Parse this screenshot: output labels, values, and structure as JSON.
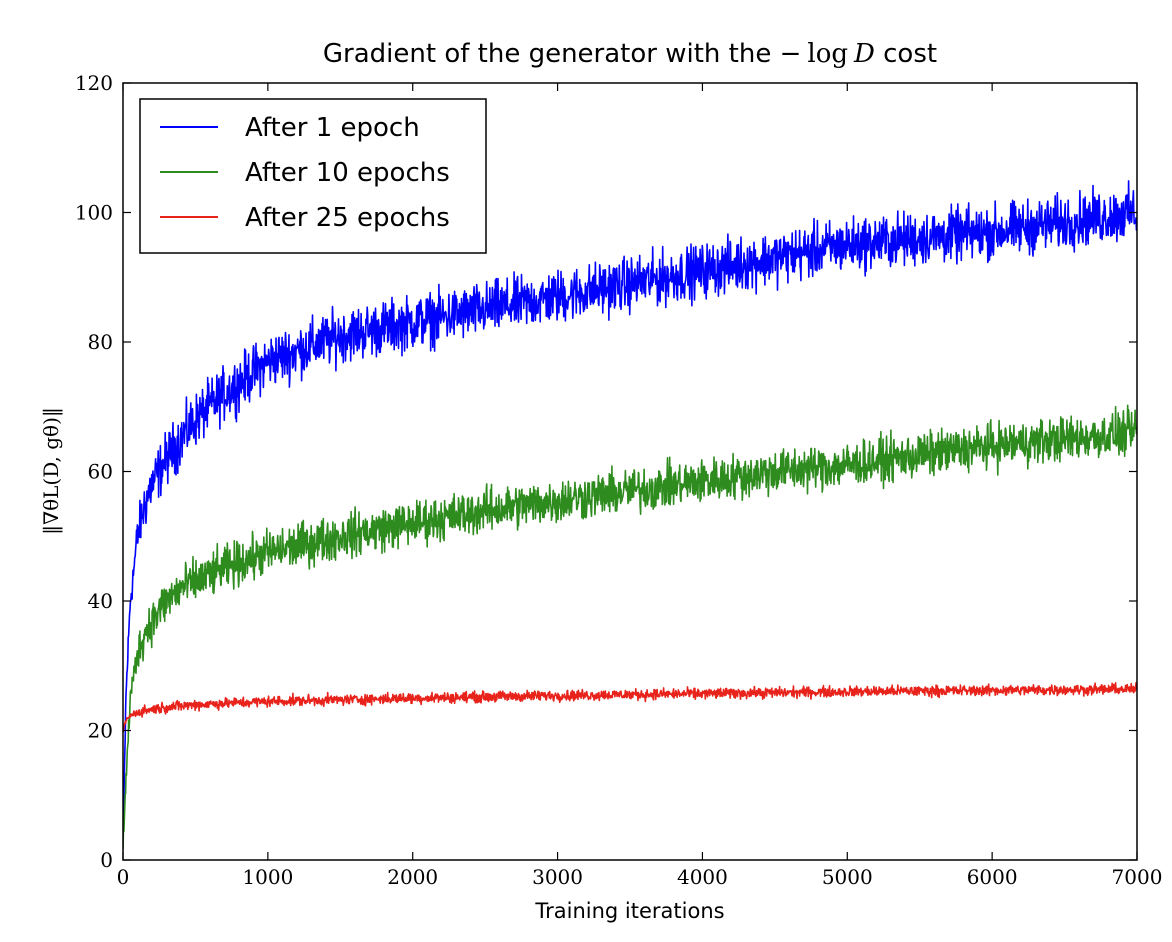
{
  "chart_data": {
    "type": "line",
    "title": {
      "prefix": "Gradient of the generator with the ",
      "math_minus": "−",
      "math_log": "log",
      "math_var": "D",
      "suffix": " cost"
    },
    "xlabel": "Training iterations",
    "ylabel": "‖∇θL(D, gθ)‖",
    "xlim": [
      0,
      7000
    ],
    "ylim": [
      0,
      120
    ],
    "xticks": [
      0,
      1000,
      2000,
      3000,
      4000,
      5000,
      6000,
      7000
    ],
    "yticks": [
      0,
      20,
      40,
      60,
      80,
      100,
      120
    ],
    "grid": false,
    "legend_position": "top-left",
    "series": [
      {
        "name": "After 1 epoch",
        "color": "#0000ff",
        "noise": 6,
        "x": [
          0,
          20,
          50,
          100,
          150,
          200,
          300,
          400,
          500,
          700,
          1000,
          1500,
          2000,
          2500,
          3000,
          3500,
          4000,
          4500,
          5000,
          5500,
          6000,
          6500,
          7000
        ],
        "y": [
          2,
          25,
          40,
          50,
          55,
          58,
          62,
          65,
          68,
          72,
          77,
          81,
          83,
          85,
          87,
          89,
          91,
          93,
          95,
          96,
          97,
          98.5,
          100
        ]
      },
      {
        "name": "After 10 epochs",
        "color": "#2e8b1e",
        "noise": 5,
        "x": [
          0,
          20,
          50,
          100,
          150,
          200,
          300,
          400,
          500,
          700,
          1000,
          1500,
          2000,
          2500,
          3000,
          3500,
          4000,
          4500,
          5000,
          5500,
          6000,
          6500,
          7000
        ],
        "y": [
          2,
          12,
          25,
          32,
          35,
          37,
          40,
          42,
          43,
          45,
          47.5,
          50,
          52,
          54,
          55.5,
          57,
          58.5,
          60,
          61,
          62.5,
          64,
          65,
          66
        ]
      },
      {
        "name": "After 25 epochs",
        "color": "#e8231b",
        "noise": 1.2,
        "x": [
          0,
          20,
          50,
          100,
          200,
          300,
          500,
          1000,
          2000,
          3000,
          4000,
          5000,
          6000,
          7000
        ],
        "y": [
          20,
          21.5,
          22.3,
          22.8,
          23.3,
          23.6,
          24,
          24.5,
          25,
          25.4,
          25.7,
          26,
          26.2,
          26.4
        ]
      }
    ]
  }
}
